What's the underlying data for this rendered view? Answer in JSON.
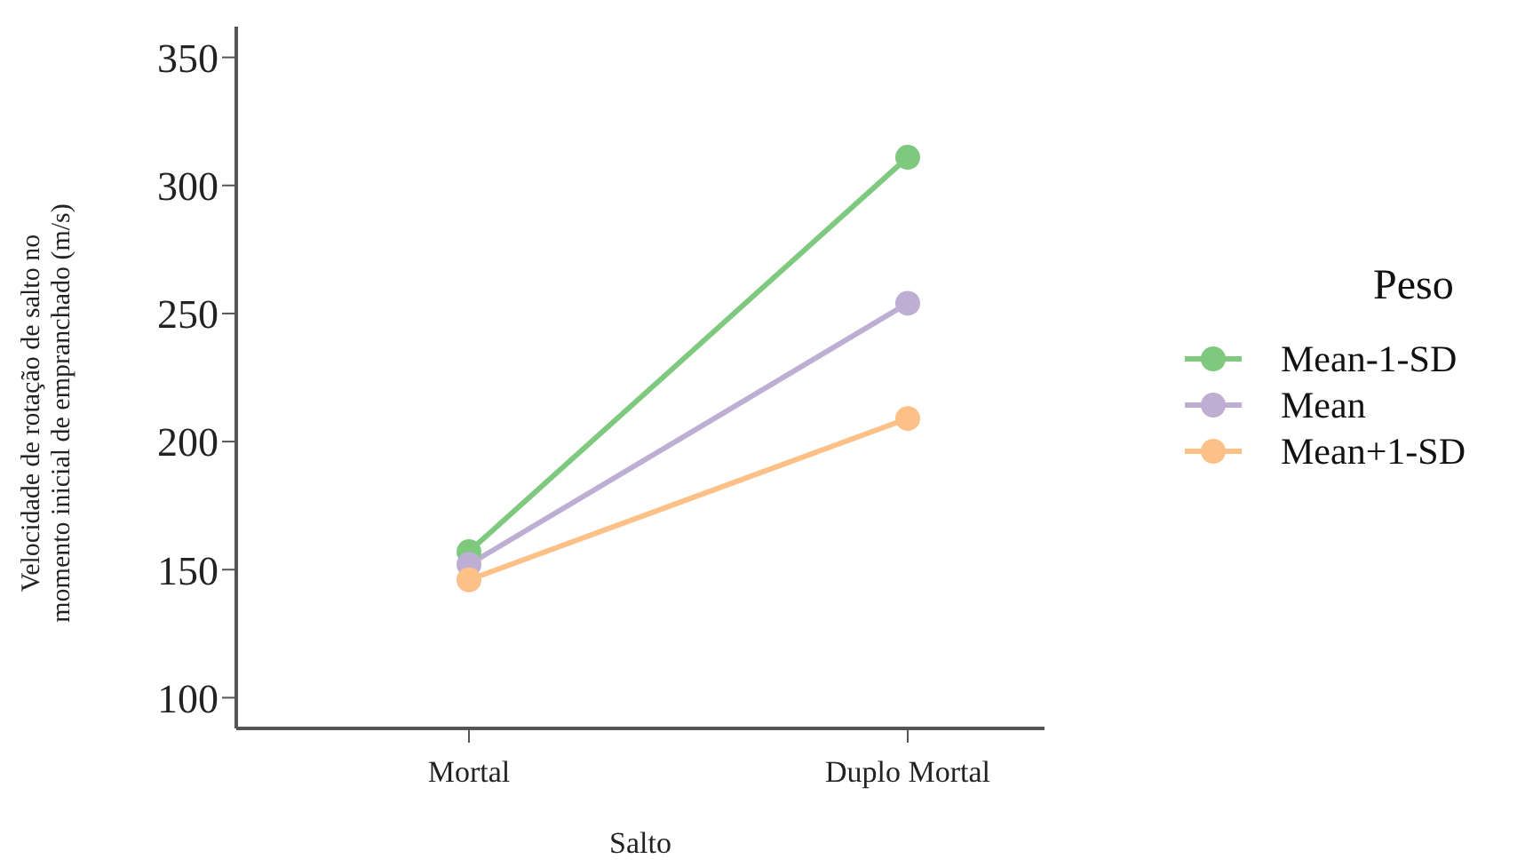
{
  "chart_data": {
    "type": "line",
    "xlabel": "Salto",
    "ylabel": "Velocidade de rotação de salto no momento inicial de empranchado (m/s)",
    "legend_title": "Peso",
    "categories": [
      "Mortal",
      "Duplo Mortal"
    ],
    "series": [
      {
        "name": "Mean-1-SD",
        "color": "#7fc97f",
        "values": [
          157,
          311
        ]
      },
      {
        "name": "Mean",
        "color": "#beaed4",
        "values": [
          152,
          254
        ]
      },
      {
        "name": "Mean+1-SD",
        "color": "#fdc086",
        "values": [
          146,
          209
        ]
      }
    ],
    "ylim": [
      88,
      362
    ],
    "yticks": [
      100,
      150,
      200,
      250,
      300,
      350
    ],
    "grid": false,
    "legend": "right",
    "marker": "circle"
  }
}
